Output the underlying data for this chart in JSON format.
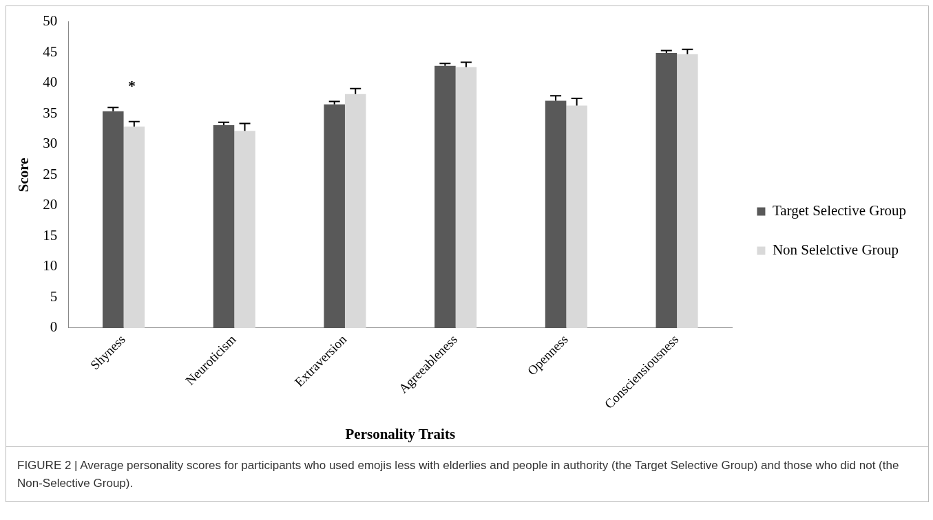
{
  "chart_data": {
    "type": "bar",
    "xlabel": "Personality Traits",
    "ylabel": "Score",
    "categories": [
      "Shyness",
      "Neuroticism",
      "Extraversion",
      "Agreeableness",
      "Openness",
      "Consciensiousness"
    ],
    "series": [
      {
        "name": "Target Selective Group",
        "color": "#595959",
        "values": [
          35.4,
          33.1,
          36.5,
          42.8,
          37.1,
          44.9
        ],
        "errors": [
          [
            35.4,
            36.0
          ],
          [
            33.1,
            33.6
          ],
          [
            36.5,
            37.0
          ],
          [
            42.8,
            43.2
          ],
          [
            37.1,
            37.9
          ],
          [
            44.9,
            45.3
          ]
        ]
      },
      {
        "name": "Non Selelctive Group",
        "color": "#d9d9d9",
        "values": [
          32.9,
          32.2,
          38.2,
          42.6,
          36.3,
          44.7
        ],
        "errors": [
          [
            32.9,
            33.7
          ],
          [
            32.2,
            33.4
          ],
          [
            38.2,
            39.1
          ],
          [
            42.6,
            43.4
          ],
          [
            36.3,
            37.5
          ],
          [
            44.7,
            45.5
          ]
        ]
      }
    ],
    "ylim": [
      0,
      50
    ],
    "yticks": [
      0,
      5,
      10,
      15,
      20,
      25,
      30,
      35,
      40,
      45,
      50
    ],
    "grid": false,
    "legend": "right",
    "annotations": [
      "*",
      "FIGURE 2 | Average personality scores for participants who used emojis less with elderlies and people in authority (the Target Selective Group) and those who did not (the Non-Selective Group)."
    ]
  }
}
